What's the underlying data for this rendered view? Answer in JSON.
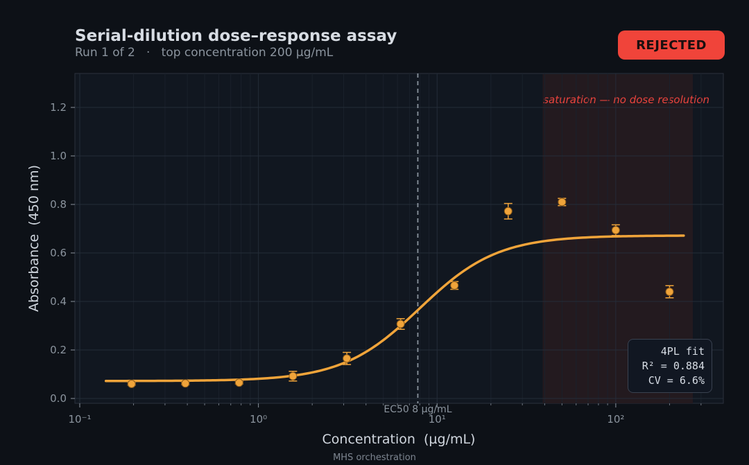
{
  "header": {
    "title": "Serial-dilution dose–response assay",
    "subtitle": "Run 1 of 2   ·   top concentration 200 µg/mL"
  },
  "status_badge": "REJECTED",
  "colors": {
    "background": "#0d1117",
    "plot_bg": "#111720",
    "accent": "#f0a43a",
    "reject": "#f0443a",
    "grid": "#242c38"
  },
  "fit_box": {
    "line1": "4PL fit",
    "line2": "R² = 0.884",
    "line3": "CV = 6.6%"
  },
  "footer": "MHS orchestration",
  "chart_data": {
    "type": "scatter",
    "xlabel": "Concentration  (µg/mL)",
    "ylabel": "Absorbance  (450 nm)",
    "x_scale": "log",
    "xlim": [
      0.1,
      400
    ],
    "ylim": [
      -0.02,
      1.34
    ],
    "xticks": [
      {
        "value": 0.1,
        "label": "10⁻¹"
      },
      {
        "value": 1,
        "label": "10⁰"
      },
      {
        "value": 10,
        "label": "10¹"
      },
      {
        "value": 100,
        "label": "10²"
      }
    ],
    "yticks": [
      {
        "value": 0.0,
        "label": "0.0"
      },
      {
        "value": 0.2,
        "label": "0.2"
      },
      {
        "value": 0.4,
        "label": "0.4"
      },
      {
        "value": 0.6,
        "label": "0.6"
      },
      {
        "value": 0.8,
        "label": "0.8"
      },
      {
        "value": 1.0,
        "label": "1.0"
      },
      {
        "value": 1.2,
        "label": "1.2"
      }
    ],
    "grid": true,
    "points": [
      {
        "x": 0.195,
        "y": 0.06,
        "err": 0.005
      },
      {
        "x": 0.39,
        "y": 0.062,
        "err": 0.005
      },
      {
        "x": 0.78,
        "y": 0.065,
        "err": 0.005
      },
      {
        "x": 1.56,
        "y": 0.092,
        "err": 0.02
      },
      {
        "x": 3.125,
        "y": 0.165,
        "err": 0.025
      },
      {
        "x": 6.25,
        "y": 0.307,
        "err": 0.022
      },
      {
        "x": 12.5,
        "y": 0.466,
        "err": 0.016
      },
      {
        "x": 25,
        "y": 0.772,
        "err": 0.032
      },
      {
        "x": 50,
        "y": 0.81,
        "err": 0.015
      },
      {
        "x": 100,
        "y": 0.694,
        "err": 0.022
      },
      {
        "x": 200,
        "y": 0.44,
        "err": 0.025
      }
    ],
    "fit_curve": {
      "model": "4PL",
      "bottom": 0.072,
      "top": 0.672,
      "ec50": 8,
      "hill": 2.0,
      "x_range": [
        0.14,
        240
      ]
    },
    "ec50_line": {
      "x": 7.8,
      "label": "EC50 8 µg/mL"
    },
    "saturation_region": {
      "x_range": [
        39,
        270
      ],
      "label": "saturation — no dose resolution"
    }
  }
}
